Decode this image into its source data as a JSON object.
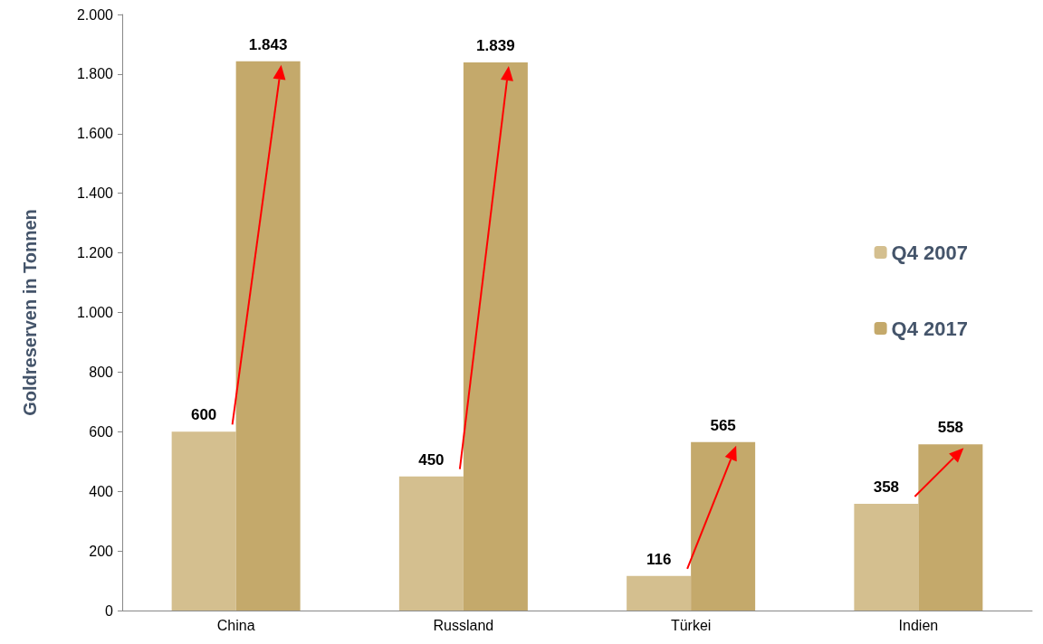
{
  "chart_data": {
    "type": "bar",
    "ylabel": "Goldreserven in Tonnen",
    "categories": [
      "China",
      "Russland",
      "Türkei",
      "Indien"
    ],
    "series": [
      {
        "name": "Q4 2007",
        "color": "#d4bf8f",
        "values": [
          600,
          450,
          116,
          358
        ],
        "value_labels": [
          "600",
          "450",
          "116",
          "358"
        ]
      },
      {
        "name": "Q4 2017",
        "color": "#c4a96b",
        "values": [
          1843,
          1839,
          565,
          558
        ],
        "value_labels": [
          "1.843",
          "1.839",
          "565",
          "558"
        ]
      }
    ],
    "ylim": [
      0,
      2000
    ],
    "yticks": [
      0,
      200,
      400,
      600,
      800,
      {
        "value": 1000,
        "label": "1.000"
      },
      {
        "value": 1200,
        "label": "1.200"
      },
      {
        "value": 1400,
        "label": "1.400"
      },
      {
        "value": 1600,
        "label": "1.600"
      },
      {
        "value": 1800,
        "label": "1.800"
      },
      {
        "value": 2000,
        "label": "2.000"
      }
    ],
    "grid": false,
    "legend": "right"
  }
}
